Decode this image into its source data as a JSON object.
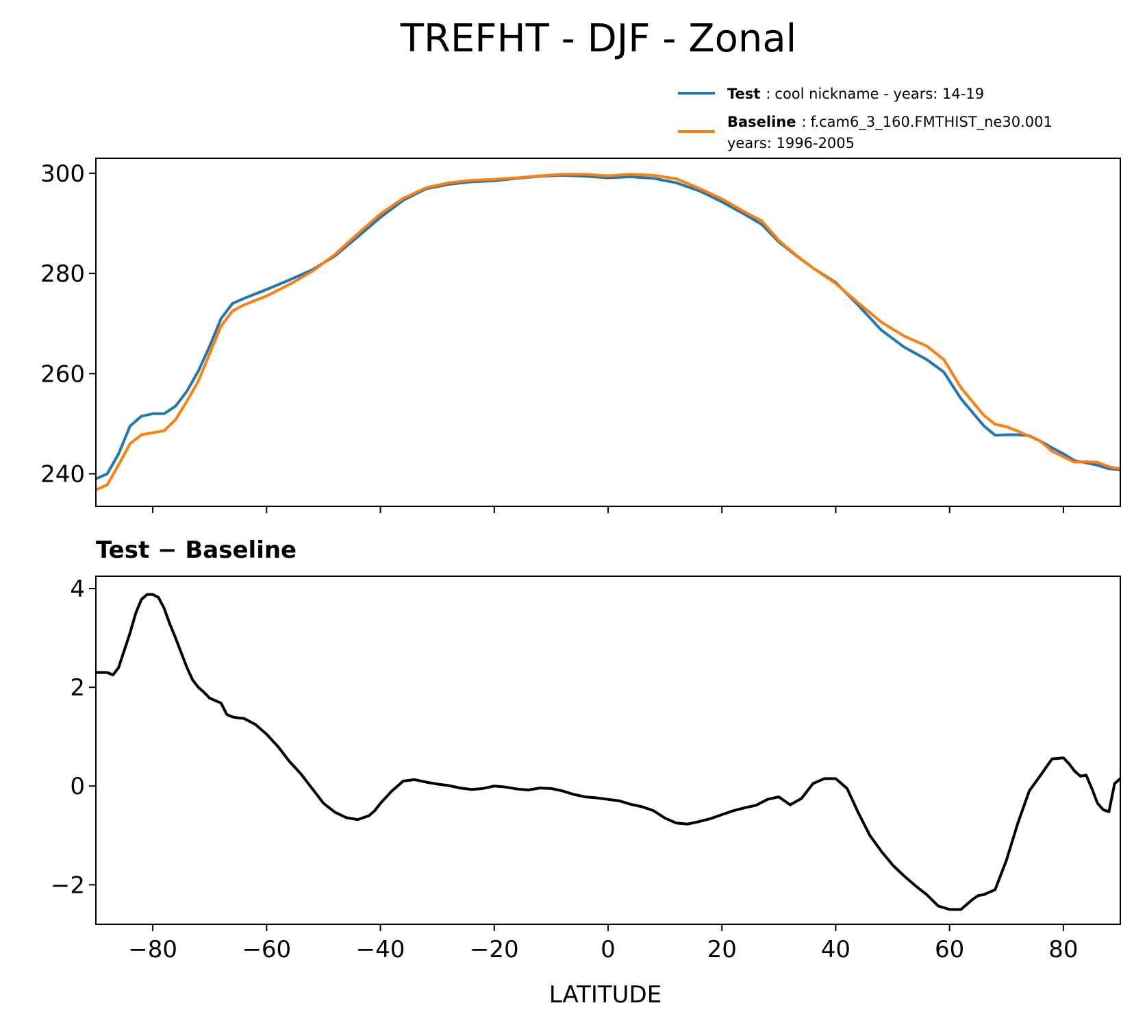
{
  "chart_data": {
    "title": "TREFHT - DJF - Zonal",
    "xlabel": "LATITUDE",
    "xlim": [
      -90,
      90
    ],
    "xticks": [
      -80,
      -60,
      -40,
      -20,
      0,
      20,
      40,
      60,
      80
    ],
    "xtick_labels": [
      "−80",
      "−60",
      "−40",
      "−20",
      "0",
      "20",
      "40",
      "60",
      "80"
    ],
    "panels": [
      {
        "type": "line",
        "title": "",
        "ylim": [
          233.5,
          303
        ],
        "yticks": [
          240,
          260,
          280,
          300
        ],
        "ytick_labels": [
          "240",
          "260",
          "280",
          "300"
        ],
        "legend": {
          "placement": "above-right",
          "entries": [
            {
              "label": "Test",
              "text": "cool nickname - years: 14-19",
              "line2": ""
            },
            {
              "label": "Baseline",
              "text": "f.cam6_3_160.FMTHIST_ne30.001",
              "line2": "years: 1996-2005"
            }
          ]
        },
        "series": [
          {
            "name": "Test",
            "color": "#1f77b4",
            "x": [
              -90,
              -88,
              -86,
              -84,
              -82,
              -80,
              -78,
              -76,
              -74,
              -72,
              -70,
              -68,
              -66,
              -64,
              -60,
              -56,
              -52,
              -48,
              -44,
              -40,
              -36,
              -32,
              -28,
              -24,
              -20,
              -16,
              -12,
              -8,
              -4,
              0,
              4,
              8,
              12,
              16,
              20,
              24,
              27,
              30,
              33,
              36,
              40,
              44,
              48,
              52,
              56,
              59,
              62,
              66,
              68,
              70,
              72,
              74,
              76,
              78,
              80,
              82,
              84,
              86,
              88,
              90
            ],
            "y": [
              239,
              240,
              244,
              249.5,
              251.5,
              252,
              252,
              253.5,
              256.5,
              260.5,
              265.5,
              271,
              274,
              275,
              276.8,
              278.7,
              280.7,
              283.5,
              287.3,
              291.2,
              294.6,
              296.9,
              297.8,
              298.3,
              298.5,
              299,
              299.4,
              299.6,
              299.4,
              299.1,
              299.3,
              299,
              298.1,
              296.5,
              294.3,
              291.8,
              289.8,
              286.3,
              283.6,
              281.1,
              278.2,
              273.6,
              268.7,
              265.3,
              262.8,
              260.3,
              255,
              249.6,
              247.7,
              247.8,
              247.8,
              247.6,
              246.5,
              245.2,
              244,
              242.6,
              242.2,
              241.7,
              241,
              240.8
            ]
          },
          {
            "name": "Baseline",
            "color": "#ff7f0e",
            "x": [
              -90,
              -88,
              -86,
              -84,
              -82,
              -80,
              -78,
              -76,
              -74,
              -72,
              -70,
              -68,
              -66,
              -64,
              -60,
              -56,
              -52,
              -48,
              -44,
              -40,
              -36,
              -32,
              -28,
              -24,
              -20,
              -16,
              -12,
              -8,
              -4,
              0,
              4,
              8,
              12,
              16,
              20,
              24,
              27,
              30,
              33,
              36,
              40,
              44,
              48,
              52,
              56,
              59,
              62,
              66,
              68,
              70,
              72,
              74,
              76,
              78,
              80,
              82,
              84,
              86,
              88,
              90
            ],
            "y": [
              236.8,
              237.8,
              241.8,
              246,
              247.8,
              248.2,
              248.6,
              250.8,
              254.5,
              258.5,
              264,
              269.5,
              272.5,
              273.7,
              275.5,
              277.8,
              280.4,
              283.8,
              287.9,
              291.9,
              295,
              297.1,
              298.1,
              298.6,
              298.8,
              299.1,
              299.5,
              299.8,
              299.8,
              299.5,
              299.8,
              299.6,
              298.9,
              297,
              294.9,
              292.3,
              290.5,
              286.6,
              283.7,
              281.1,
              278,
              274.1,
              270.3,
              267.5,
              265.5,
              262.8,
              257.2,
              251.7,
              249.9,
              249.4,
              248.5,
              247.5,
              246.5,
              244.5,
              243.4,
              242.3,
              242.4,
              242.3,
              241.4,
              241
            ]
          }
        ]
      },
      {
        "type": "line",
        "title": "Test − Baseline",
        "ylim": [
          -2.8,
          4.25
        ],
        "yticks": [
          -2,
          0,
          2,
          4
        ],
        "ytick_labels": [
          "−2",
          "0",
          "2",
          "4"
        ],
        "series": [
          {
            "name": "Test − Baseline",
            "color": "#000000",
            "x": [
              -90,
              -88,
              -87,
              -86,
              -84,
              -83,
              -82,
              -81,
              -80,
              -79,
              -78,
              -77,
              -76,
              -75,
              -74,
              -73,
              -72,
              -71,
              -70,
              -69,
              -68,
              -67,
              -66,
              -65,
              -64,
              -62,
              -60,
              -58,
              -56,
              -54,
              -52,
              -50,
              -48,
              -46,
              -44,
              -42,
              -41,
              -40,
              -38,
              -36,
              -34,
              -32,
              -30,
              -28,
              -26,
              -24,
              -22,
              -20,
              -18,
              -16,
              -14,
              -12,
              -10,
              -8,
              -6,
              -4,
              -2,
              0,
              2,
              4,
              6,
              8,
              10,
              12,
              14,
              16,
              18,
              20,
              22,
              24,
              26,
              28,
              30,
              32,
              34,
              36,
              38,
              40,
              42,
              44,
              46,
              48,
              50,
              52,
              54,
              56,
              58,
              60,
              61,
              62,
              64,
              65,
              66,
              68,
              70,
              72,
              74,
              76,
              78,
              80,
              81,
              82,
              83,
              84,
              85,
              86,
              87,
              88,
              89,
              90
            ],
            "y": [
              2.3,
              2.3,
              2.25,
              2.4,
              3.1,
              3.5,
              3.78,
              3.88,
              3.88,
              3.82,
              3.6,
              3.28,
              3.0,
              2.7,
              2.4,
              2.15,
              2.0,
              1.9,
              1.78,
              1.73,
              1.68,
              1.45,
              1.4,
              1.38,
              1.37,
              1.25,
              1.05,
              0.8,
              0.5,
              0.25,
              -0.05,
              -0.35,
              -0.53,
              -0.64,
              -0.68,
              -0.6,
              -0.5,
              -0.35,
              -0.1,
              0.1,
              0.13,
              0.08,
              0.04,
              0.01,
              -0.04,
              -0.07,
              -0.05,
              0.0,
              -0.02,
              -0.06,
              -0.08,
              -0.04,
              -0.05,
              -0.1,
              -0.17,
              -0.22,
              -0.24,
              -0.27,
              -0.3,
              -0.37,
              -0.42,
              -0.5,
              -0.65,
              -0.75,
              -0.77,
              -0.72,
              -0.66,
              -0.58,
              -0.5,
              -0.44,
              -0.39,
              -0.27,
              -0.22,
              -0.38,
              -0.25,
              0.05,
              0.15,
              0.15,
              -0.05,
              -0.55,
              -1.0,
              -1.32,
              -1.6,
              -1.82,
              -2.02,
              -2.2,
              -2.43,
              -2.5,
              -2.5,
              -2.5,
              -2.3,
              -2.22,
              -2.2,
              -2.1,
              -1.5,
              -0.75,
              -0.1,
              0.22,
              0.55,
              0.57,
              0.45,
              0.3,
              0.2,
              0.22,
              -0.05,
              -0.35,
              -0.48,
              -0.52,
              0.05,
              0.15
            ]
          }
        ]
      }
    ]
  }
}
